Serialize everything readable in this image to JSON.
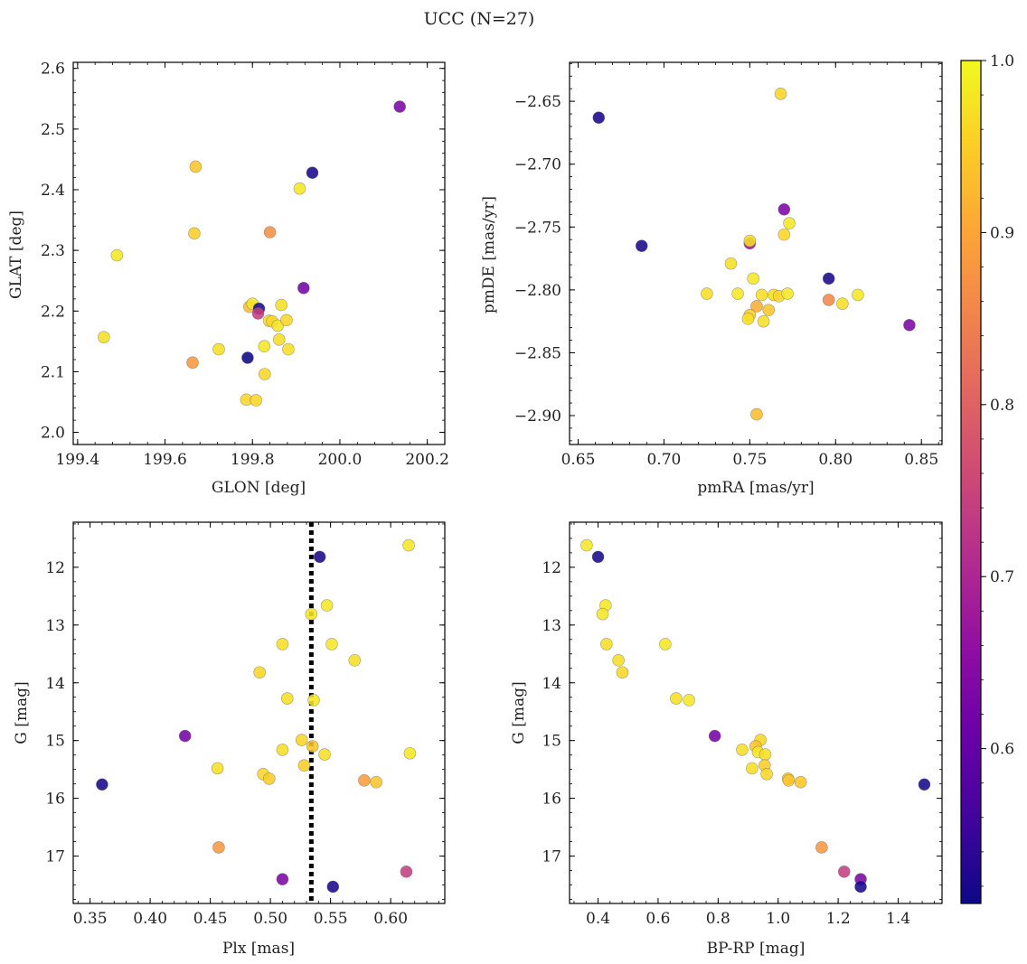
{
  "figure": {
    "suptitle": "UCC (N=27)",
    "colormap": "plasma",
    "colorbar": {
      "min": 0.51,
      "max": 1.0,
      "ticks": [
        0.6,
        0.7,
        0.8,
        0.9,
        1.0
      ],
      "tick_labels": [
        "0.6",
        "0.7",
        "0.8",
        "0.9",
        "1.0"
      ]
    }
  },
  "chart_data": [
    {
      "type": "scatter",
      "xlabel": "GLON [deg]",
      "ylabel": "GLAT [deg]",
      "xlim": [
        199.39,
        200.24
      ],
      "ylim": [
        1.98,
        2.61
      ],
      "xticks": [
        199.4,
        199.6,
        199.8,
        200.0,
        200.2
      ],
      "xtick_labels": [
        "199.4",
        "199.6",
        "199.8",
        "200.0",
        "200.2"
      ],
      "yticks": [
        2.0,
        2.1,
        2.2,
        2.3,
        2.4,
        2.5,
        2.6
      ],
      "ytick_labels": [
        "2.0",
        "2.1",
        "2.2",
        "2.3",
        "2.4",
        "2.5",
        "2.6"
      ],
      "points": [
        {
          "x": 199.46,
          "y": 2.157,
          "c": 0.97
        },
        {
          "x": 199.49,
          "y": 2.292,
          "c": 0.98
        },
        {
          "x": 199.67,
          "y": 2.438,
          "c": 0.94
        },
        {
          "x": 199.667,
          "y": 2.328,
          "c": 0.95
        },
        {
          "x": 199.663,
          "y": 2.115,
          "c": 0.88
        },
        {
          "x": 199.723,
          "y": 2.137,
          "c": 0.97
        },
        {
          "x": 199.786,
          "y": 2.054,
          "c": 0.96
        },
        {
          "x": 199.808,
          "y": 2.053,
          "c": 0.96
        },
        {
          "x": 199.789,
          "y": 2.123,
          "c": 0.51
        },
        {
          "x": 199.793,
          "y": 2.207,
          "c": 0.93
        },
        {
          "x": 199.8,
          "y": 2.212,
          "c": 0.98
        },
        {
          "x": 199.815,
          "y": 2.204,
          "c": 0.52
        },
        {
          "x": 199.813,
          "y": 2.196,
          "c": 0.74
        },
        {
          "x": 199.84,
          "y": 2.33,
          "c": 0.87
        },
        {
          "x": 199.838,
          "y": 2.184,
          "c": 0.97
        },
        {
          "x": 199.845,
          "y": 2.183,
          "c": 0.96
        },
        {
          "x": 199.827,
          "y": 2.142,
          "c": 0.98
        },
        {
          "x": 199.828,
          "y": 2.096,
          "c": 0.96
        },
        {
          "x": 199.858,
          "y": 2.176,
          "c": 0.98
        },
        {
          "x": 199.866,
          "y": 2.21,
          "c": 0.97
        },
        {
          "x": 199.861,
          "y": 2.153,
          "c": 0.97
        },
        {
          "x": 199.878,
          "y": 2.185,
          "c": 0.96
        },
        {
          "x": 199.882,
          "y": 2.137,
          "c": 0.97
        },
        {
          "x": 199.908,
          "y": 2.402,
          "c": 0.98
        },
        {
          "x": 199.917,
          "y": 2.238,
          "c": 0.62
        },
        {
          "x": 199.937,
          "y": 2.428,
          "c": 0.52
        },
        {
          "x": 200.137,
          "y": 2.537,
          "c": 0.63
        }
      ]
    },
    {
      "type": "scatter",
      "xlabel": "pmRA [mas/yr]",
      "ylabel": "pmDE [mas/yr]",
      "xlim": [
        0.645,
        0.862
      ],
      "ylim": [
        -2.923,
        -2.619
      ],
      "xticks": [
        0.65,
        0.7,
        0.75,
        0.8,
        0.85
      ],
      "xtick_labels": [
        "0.65",
        "0.70",
        "0.75",
        "0.80",
        "0.85"
      ],
      "yticks": [
        -2.65,
        -2.7,
        -2.75,
        -2.8,
        -2.85,
        -2.9
      ],
      "ytick_labels": [
        "−2.65",
        "−2.70",
        "−2.75",
        "−2.80",
        "−2.85",
        "−2.90"
      ],
      "points": [
        {
          "x": 0.662,
          "y": -2.663,
          "c": 0.52
        },
        {
          "x": 0.687,
          "y": -2.765,
          "c": 0.52
        },
        {
          "x": 0.768,
          "y": -2.644,
          "c": 0.96
        },
        {
          "x": 0.77,
          "y": -2.736,
          "c": 0.63
        },
        {
          "x": 0.773,
          "y": -2.747,
          "c": 0.98
        },
        {
          "x": 0.77,
          "y": -2.756,
          "c": 0.96
        },
        {
          "x": 0.75,
          "y": -2.763,
          "c": 0.67
        },
        {
          "x": 0.75,
          "y": -2.761,
          "c": 0.97
        },
        {
          "x": 0.739,
          "y": -2.779,
          "c": 0.97
        },
        {
          "x": 0.752,
          "y": -2.791,
          "c": 0.98
        },
        {
          "x": 0.796,
          "y": -2.791,
          "c": 0.52
        },
        {
          "x": 0.725,
          "y": -2.803,
          "c": 0.97
        },
        {
          "x": 0.743,
          "y": -2.803,
          "c": 0.98
        },
        {
          "x": 0.757,
          "y": -2.804,
          "c": 0.97
        },
        {
          "x": 0.764,
          "y": -2.804,
          "c": 0.97
        },
        {
          "x": 0.767,
          "y": -2.805,
          "c": 0.96
        },
        {
          "x": 0.772,
          "y": -2.803,
          "c": 0.98
        },
        {
          "x": 0.813,
          "y": -2.804,
          "c": 0.98
        },
        {
          "x": 0.796,
          "y": -2.808,
          "c": 0.86
        },
        {
          "x": 0.804,
          "y": -2.811,
          "c": 0.97
        },
        {
          "x": 0.754,
          "y": -2.813,
          "c": 0.91
        },
        {
          "x": 0.761,
          "y": -2.816,
          "c": 0.94
        },
        {
          "x": 0.75,
          "y": -2.82,
          "c": 0.95
        },
        {
          "x": 0.749,
          "y": -2.823,
          "c": 0.97
        },
        {
          "x": 0.758,
          "y": -2.825,
          "c": 0.97
        },
        {
          "x": 0.843,
          "y": -2.828,
          "c": 0.63
        },
        {
          "x": 0.754,
          "y": -2.899,
          "c": 0.93
        }
      ]
    },
    {
      "type": "scatter",
      "xlabel": "Plx [mas]",
      "ylabel": "G [mag]",
      "xlim": [
        0.336,
        0.645
      ],
      "ylim": [
        17.82,
        11.22
      ],
      "y_inverted": true,
      "xticks": [
        0.35,
        0.4,
        0.45,
        0.5,
        0.55,
        0.6
      ],
      "xtick_labels": [
        "0.35",
        "0.40",
        "0.45",
        "0.50",
        "0.55",
        "0.60"
      ],
      "yticks": [
        12,
        13,
        14,
        15,
        16,
        17
      ],
      "ytick_labels": [
        "12",
        "13",
        "14",
        "15",
        "16",
        "17"
      ],
      "vline": {
        "x": 0.534,
        "style": "dotted",
        "color": "#000000"
      },
      "points": [
        {
          "x": 0.615,
          "y": 11.62,
          "c": 0.98
        },
        {
          "x": 0.541,
          "y": 11.82,
          "c": 0.52
        },
        {
          "x": 0.547,
          "y": 12.66,
          "c": 0.98
        },
        {
          "x": 0.534,
          "y": 12.81,
          "c": 0.98
        },
        {
          "x": 0.51,
          "y": 13.33,
          "c": 0.97
        },
        {
          "x": 0.551,
          "y": 13.33,
          "c": 0.98
        },
        {
          "x": 0.57,
          "y": 13.61,
          "c": 0.97
        },
        {
          "x": 0.491,
          "y": 13.82,
          "c": 0.96
        },
        {
          "x": 0.514,
          "y": 14.27,
          "c": 0.97
        },
        {
          "x": 0.536,
          "y": 14.3,
          "c": 0.98
        },
        {
          "x": 0.429,
          "y": 14.92,
          "c": 0.62
        },
        {
          "x": 0.526,
          "y": 14.99,
          "c": 0.96
        },
        {
          "x": 0.535,
          "y": 15.1,
          "c": 0.94
        },
        {
          "x": 0.51,
          "y": 15.16,
          "c": 0.97
        },
        {
          "x": 0.545,
          "y": 15.24,
          "c": 0.97
        },
        {
          "x": 0.616,
          "y": 15.22,
          "c": 0.98
        },
        {
          "x": 0.528,
          "y": 15.43,
          "c": 0.95
        },
        {
          "x": 0.456,
          "y": 15.48,
          "c": 0.97
        },
        {
          "x": 0.494,
          "y": 15.58,
          "c": 0.96
        },
        {
          "x": 0.499,
          "y": 15.66,
          "c": 0.95
        },
        {
          "x": 0.578,
          "y": 15.69,
          "c": 0.89
        },
        {
          "x": 0.588,
          "y": 15.72,
          "c": 0.94
        },
        {
          "x": 0.36,
          "y": 15.76,
          "c": 0.52
        },
        {
          "x": 0.457,
          "y": 16.85,
          "c": 0.88
        },
        {
          "x": 0.613,
          "y": 17.27,
          "c": 0.74
        },
        {
          "x": 0.51,
          "y": 17.4,
          "c": 0.63
        },
        {
          "x": 0.552,
          "y": 17.53,
          "c": 0.52
        }
      ]
    },
    {
      "type": "scatter",
      "xlabel": "BP-RP [mag]",
      "ylabel": "G [mag]",
      "xlim": [
        0.305,
        1.546
      ],
      "ylim": [
        17.82,
        11.22
      ],
      "y_inverted": true,
      "xticks": [
        0.4,
        0.6,
        0.8,
        1.0,
        1.2,
        1.4
      ],
      "xtick_labels": [
        "0.4",
        "0.6",
        "0.8",
        "1.0",
        "1.2",
        "1.4"
      ],
      "yticks": [
        12,
        13,
        14,
        15,
        16,
        17
      ],
      "ytick_labels": [
        "12",
        "13",
        "14",
        "15",
        "16",
        "17"
      ],
      "points": [
        {
          "x": 0.362,
          "y": 11.62,
          "c": 0.98
        },
        {
          "x": 0.4,
          "y": 11.82,
          "c": 0.52
        },
        {
          "x": 0.425,
          "y": 12.66,
          "c": 0.98
        },
        {
          "x": 0.415,
          "y": 12.81,
          "c": 0.98
        },
        {
          "x": 0.428,
          "y": 13.33,
          "c": 0.97
        },
        {
          "x": 0.624,
          "y": 13.33,
          "c": 0.98
        },
        {
          "x": 0.468,
          "y": 13.61,
          "c": 0.97
        },
        {
          "x": 0.481,
          "y": 13.82,
          "c": 0.96
        },
        {
          "x": 0.66,
          "y": 14.27,
          "c": 0.97
        },
        {
          "x": 0.703,
          "y": 14.3,
          "c": 0.98
        },
        {
          "x": 0.789,
          "y": 14.92,
          "c": 0.62
        },
        {
          "x": 0.941,
          "y": 14.99,
          "c": 0.96
        },
        {
          "x": 0.925,
          "y": 15.1,
          "c": 0.94
        },
        {
          "x": 0.88,
          "y": 15.16,
          "c": 0.97
        },
        {
          "x": 0.933,
          "y": 15.2,
          "c": 0.98
        },
        {
          "x": 0.957,
          "y": 15.24,
          "c": 0.97
        },
        {
          "x": 0.955,
          "y": 15.43,
          "c": 0.95
        },
        {
          "x": 0.913,
          "y": 15.48,
          "c": 0.97
        },
        {
          "x": 0.962,
          "y": 15.58,
          "c": 0.96
        },
        {
          "x": 1.033,
          "y": 15.66,
          "c": 0.95
        },
        {
          "x": 1.035,
          "y": 15.69,
          "c": 0.94
        },
        {
          "x": 1.075,
          "y": 15.72,
          "c": 0.94
        },
        {
          "x": 1.487,
          "y": 15.76,
          "c": 0.52
        },
        {
          "x": 1.145,
          "y": 16.85,
          "c": 0.88
        },
        {
          "x": 1.22,
          "y": 17.27,
          "c": 0.74
        },
        {
          "x": 1.275,
          "y": 17.4,
          "c": 0.63
        },
        {
          "x": 1.275,
          "y": 17.53,
          "c": 0.52
        }
      ]
    }
  ]
}
